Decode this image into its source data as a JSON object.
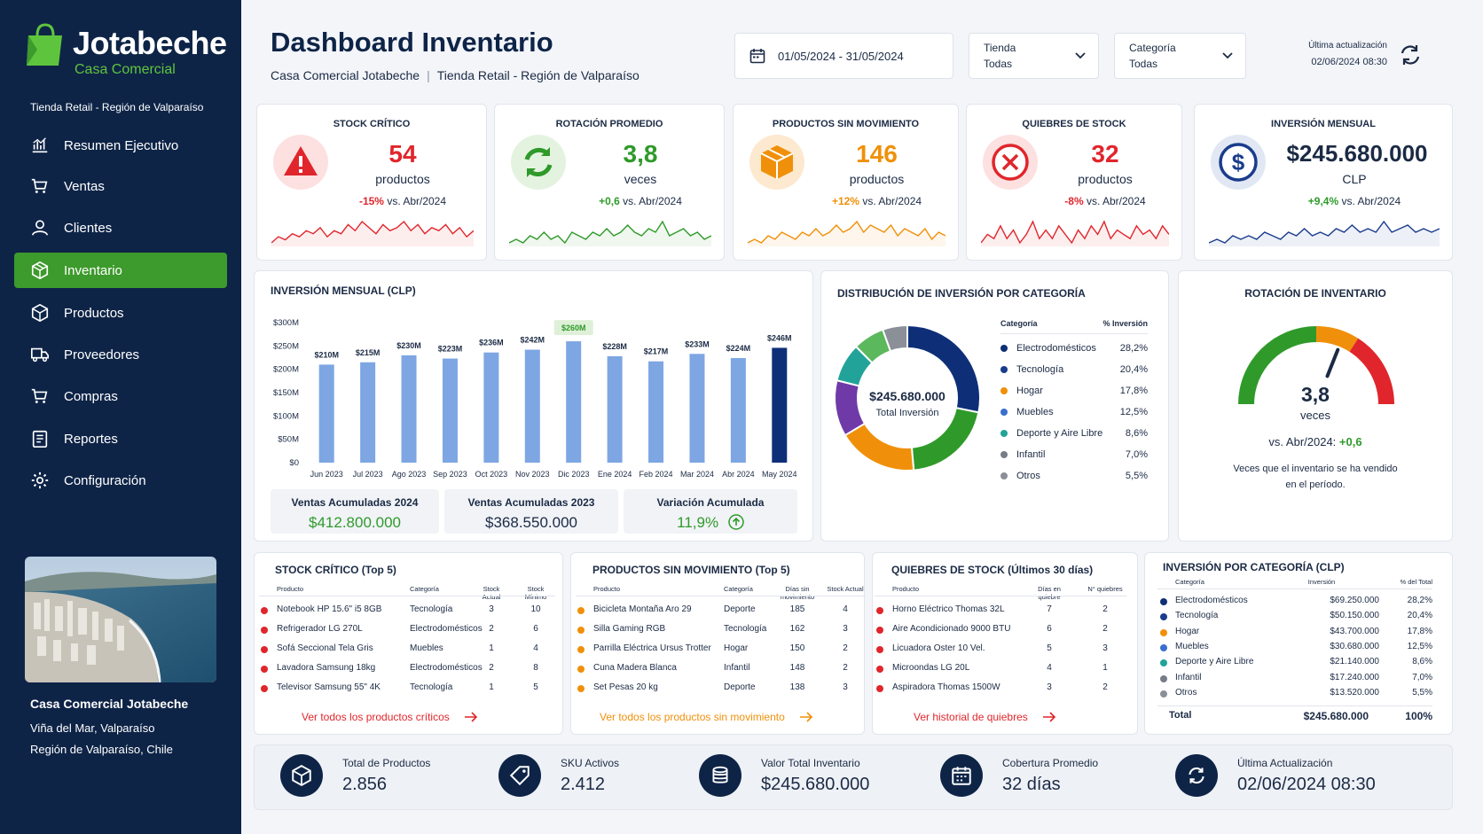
{
  "brand": {
    "name": "Jotabeche",
    "tagline": "Casa Comercial",
    "store": "Tienda Retail - Región de Valparaíso"
  },
  "nav": [
    {
      "label": "Resumen Ejecutivo",
      "icon": "chart-icon",
      "active": false
    },
    {
      "label": "Ventas",
      "icon": "cart-icon",
      "active": false
    },
    {
      "label": "Clientes",
      "icon": "user-icon",
      "active": false
    },
    {
      "label": "Inventario",
      "icon": "box-icon",
      "active": true
    },
    {
      "label": "Productos",
      "icon": "cube-icon",
      "active": false
    },
    {
      "label": "Proveedores",
      "icon": "truck-icon",
      "active": false
    },
    {
      "label": "Compras",
      "icon": "cart-icon",
      "active": false
    },
    {
      "label": "Reportes",
      "icon": "clipboard-icon",
      "active": false
    },
    {
      "label": "Configuración",
      "icon": "gear-icon",
      "active": false
    }
  ],
  "sidebar_footer": {
    "company": "Casa Comercial Jotabeche",
    "city": "Viña del Mar, Valparaíso",
    "region": "Región de Valparaíso, Chile"
  },
  "header": {
    "title": "Dashboard Inventario",
    "company": "Casa Comercial Jotabeche",
    "store": "Tienda Retail - Región de Valparaíso",
    "date_range": "01/05/2024 - 31/05/2024",
    "store_filter": {
      "label": "Tienda",
      "value": "Todas"
    },
    "category_filter": {
      "label": "Categoría",
      "value": "Todas"
    },
    "updated_label": "Última actualización",
    "updated_value": "02/06/2024 08:30"
  },
  "kpis": [
    {
      "title": "STOCK CRÍTICO",
      "value": "54",
      "unit": "productos",
      "delta": "-15%",
      "vs": "vs. Abr/2024",
      "color": "#e0262c",
      "bg": "#fde6e6",
      "icon": "warning-icon",
      "spark": [
        3,
        5,
        4,
        6,
        5,
        7,
        6,
        8,
        5,
        7,
        6,
        9,
        7,
        10,
        8,
        6,
        9,
        7,
        8,
        10,
        7,
        9,
        6,
        8,
        7,
        9,
        6,
        8,
        5,
        7
      ]
    },
    {
      "title": "ROTACIÓN PROMEDIO",
      "value": "3,8",
      "unit": "veces",
      "delta": "+0,6",
      "vs": "vs. Abr/2024",
      "color": "#2f9a2a",
      "bg": "#e7f4e4",
      "icon": "refresh-icon",
      "spark": [
        3,
        4,
        3,
        5,
        4,
        6,
        4,
        5,
        3,
        6,
        5,
        4,
        6,
        5,
        7,
        5,
        6,
        8,
        6,
        5,
        7,
        6,
        9,
        5,
        6,
        7,
        5,
        6,
        4,
        5
      ]
    },
    {
      "title": "PRODUCTOS SIN MOVIMIENTO",
      "value": "146",
      "unit": "productos",
      "delta": "+12%",
      "vs": "vs. Abr/2024",
      "color": "#f0900a",
      "bg": "#fdecd5",
      "icon": "box-icon",
      "spark": [
        3,
        4,
        3,
        5,
        4,
        6,
        5,
        4,
        6,
        5,
        7,
        5,
        6,
        8,
        6,
        7,
        9,
        6,
        8,
        7,
        6,
        8,
        5,
        7,
        6,
        5,
        7,
        4,
        6,
        5
      ]
    },
    {
      "title": "QUIEBRES DE STOCK",
      "value": "32",
      "unit": "productos",
      "delta": "-8%",
      "vs": "vs. Abr/2024",
      "color": "#e0262c",
      "bg": "#fde6e6",
      "icon": "close-circle-icon",
      "spark": [
        4,
        6,
        5,
        8,
        5,
        7,
        4,
        6,
        9,
        5,
        7,
        5,
        8,
        6,
        4,
        7,
        5,
        8,
        6,
        9,
        5,
        7,
        6,
        5,
        8,
        6,
        7,
        5,
        8,
        6
      ]
    },
    {
      "title": "INVERSIÓN MENSUAL",
      "value": "$245.680.000",
      "unit": "CLP",
      "delta": "+9,4%",
      "vs": "vs. Abr/2024",
      "color": "#1a3c8c",
      "bg": "#e4ebf6",
      "deltaColor": "#2f9a2a",
      "icon": "dollar-icon",
      "spark": [
        3,
        4,
        3,
        5,
        4,
        5,
        4,
        6,
        5,
        4,
        6,
        5,
        7,
        5,
        6,
        5,
        7,
        6,
        8,
        6,
        7,
        6,
        9,
        6,
        7,
        8,
        6,
        7,
        6,
        7
      ]
    }
  ],
  "chart_data": {
    "type": "bar",
    "title": "INVERSIÓN MENSUAL (CLP)",
    "categories": [
      "Jun 2023",
      "Jul 2023",
      "Ago 2023",
      "Sep 2023",
      "Oct 2023",
      "Nov 2023",
      "Dic 2023",
      "Ene 2024",
      "Feb 2024",
      "Mar 2024",
      "Abr 2024",
      "May 2024"
    ],
    "values": [
      210,
      215,
      230,
      223,
      236,
      242,
      260,
      228,
      217,
      233,
      224,
      246
    ],
    "labels": [
      "$210M",
      "$215M",
      "$230M",
      "$223M",
      "$236M",
      "$242M",
      "$260M",
      "$228M",
      "$217M",
      "$233M",
      "$224M",
      "$246M"
    ],
    "yticks": [
      "$0",
      "$50M",
      "$100M",
      "$150M",
      "$200M",
      "$250M",
      "$300M"
    ],
    "ylim": [
      0,
      300
    ],
    "highlight_index": 6,
    "current_index": 11
  },
  "sales_summary": [
    {
      "label": "Ventas Acumuladas 2024",
      "value": "$412.800.000",
      "color": "#2f9a2a"
    },
    {
      "label": "Ventas Acumuladas 2023",
      "value": "$368.550.000",
      "color": "#1b2a44"
    },
    {
      "label": "Variación Acumulada",
      "value": "11,9%",
      "color": "#2f9a2a"
    }
  ],
  "donut": {
    "title": "DISTRIBUCIÓN DE INVERSIÓN POR CATEGORÍA",
    "center_value": "$245.680.000",
    "center_label": "Total Inversión",
    "col_cat": "Categoría",
    "col_pct": "% Inversión",
    "items": [
      {
        "name": "Electrodomésticos",
        "pct": "28,2%",
        "value": 28.2,
        "color": "#0e2f78"
      },
      {
        "name": "Tecnología",
        "pct": "20,4%",
        "value": 20.4,
        "color": "#2f9a2a"
      },
      {
        "name": "Hogar",
        "pct": "17,8%",
        "value": 17.8,
        "color": "#f0900a"
      },
      {
        "name": "Muebles",
        "pct": "12,5%",
        "value": 12.5,
        "color": "#6f3aa8"
      },
      {
        "name": "Deporte y Aire Libre",
        "pct": "8,6%",
        "value": 8.6,
        "color": "#22a39a"
      },
      {
        "name": "Infantil",
        "pct": "7,0%",
        "value": 7.0,
        "color": "#5cb85c"
      },
      {
        "name": "Otros",
        "pct": "5,5%",
        "value": 5.5,
        "color": "#8a8f98"
      }
    ]
  },
  "legend_colors": [
    "#0e2f78",
    "#1a3c8c",
    "#f0900a",
    "#3a6fd0",
    "#22a39a",
    "#777d87",
    "#8a8f98"
  ],
  "gauge": {
    "title": "ROTACIÓN DE INVENTARIO",
    "value": "3,8",
    "unit": "veces",
    "vs": "vs. Abr/2024:",
    "delta": "+0,6",
    "note1": "Veces que el inventario se ha vendido",
    "note2": "en el período.",
    "level": 0.62
  },
  "stock_critico": {
    "title": "STOCK CRÍTICO (Top 5)",
    "cols": [
      "Producto",
      "Categoría",
      "Stock Actual",
      "Stock Mínimo"
    ],
    "color": "#e0262c",
    "rows": [
      [
        "Notebook HP 15.6\" i5 8GB",
        "Tecnología",
        "3",
        "10"
      ],
      [
        "Refrigerador LG 270L",
        "Electrodomésticos",
        "2",
        "6"
      ],
      [
        "Sofá Seccional Tela Gris",
        "Muebles",
        "1",
        "4"
      ],
      [
        "Lavadora Samsung 18kg",
        "Electrodomésticos",
        "2",
        "8"
      ],
      [
        "Televisor Samsung 55\" 4K",
        "Tecnología",
        "1",
        "5"
      ]
    ],
    "link": "Ver todos los productos críticos"
  },
  "sin_movimiento": {
    "title": "PRODUCTOS SIN MOVIMIENTO (Top 5)",
    "cols": [
      "Producto",
      "Categoría",
      "Días sin movimiento",
      "Stock Actual"
    ],
    "color": "#f0900a",
    "rows": [
      [
        "Bicicleta Montaña Aro 29",
        "Deporte",
        "185",
        "4"
      ],
      [
        "Silla Gaming RGB",
        "Tecnología",
        "162",
        "3"
      ],
      [
        "Parrilla Eléctrica Ursus Trotter",
        "Hogar",
        "150",
        "2"
      ],
      [
        "Cuna Madera Blanca",
        "Infantil",
        "148",
        "2"
      ],
      [
        "Set Pesas 20 kg",
        "Deporte",
        "138",
        "3"
      ]
    ],
    "link": "Ver todos los productos sin movimiento"
  },
  "quiebres": {
    "title": "QUIEBRES DE STOCK (Últimos 30 días)",
    "cols": [
      "Producto",
      "Días en quiebre",
      "N° quiebres"
    ],
    "color": "#e0262c",
    "rows": [
      [
        "Horno Eléctrico Thomas 32L",
        "7",
        "2"
      ],
      [
        "Aire Acondicionado 9000 BTU",
        "6",
        "2"
      ],
      [
        "Licuadora Oster 10 Vel.",
        "5",
        "3"
      ],
      [
        "Microondas LG 20L",
        "4",
        "1"
      ],
      [
        "Aspiradora Thomas 1500W",
        "3",
        "2"
      ]
    ],
    "link": "Ver historial de quiebres"
  },
  "inv_categoria": {
    "title": "INVERSIÓN POR CATEGORÍA (CLP)",
    "cols": [
      "Categoría",
      "Inversión",
      "% del Total"
    ],
    "rows": [
      [
        "Electrodomésticos",
        "$69.250.000",
        "28,2%"
      ],
      [
        "Tecnología",
        "$50.150.000",
        "20,4%"
      ],
      [
        "Hogar",
        "$43.700.000",
        "17,8%"
      ],
      [
        "Muebles",
        "$30.680.000",
        "12,5%"
      ],
      [
        "Deporte y Aire Libre",
        "$21.140.000",
        "8,6%"
      ],
      [
        "Infantil",
        "$17.240.000",
        "7,0%"
      ],
      [
        "Otros",
        "$13.520.000",
        "5,5%"
      ]
    ],
    "total_label": "Total",
    "total_value": "$245.680.000",
    "total_pct": "100%"
  },
  "bottom": [
    {
      "label": "Total de Productos",
      "value": "2.856",
      "icon": "cube-icon"
    },
    {
      "label": "SKU Activos",
      "value": "2.412",
      "icon": "tag-icon"
    },
    {
      "label": "Valor Total Inventario",
      "value": "$245.680.000",
      "icon": "coins-icon"
    },
    {
      "label": "Cobertura Promedio",
      "value": "32 días",
      "icon": "calendar-icon"
    },
    {
      "label": "Última Actualización",
      "value": "02/06/2024 08:30",
      "icon": "refresh-icon"
    }
  ]
}
